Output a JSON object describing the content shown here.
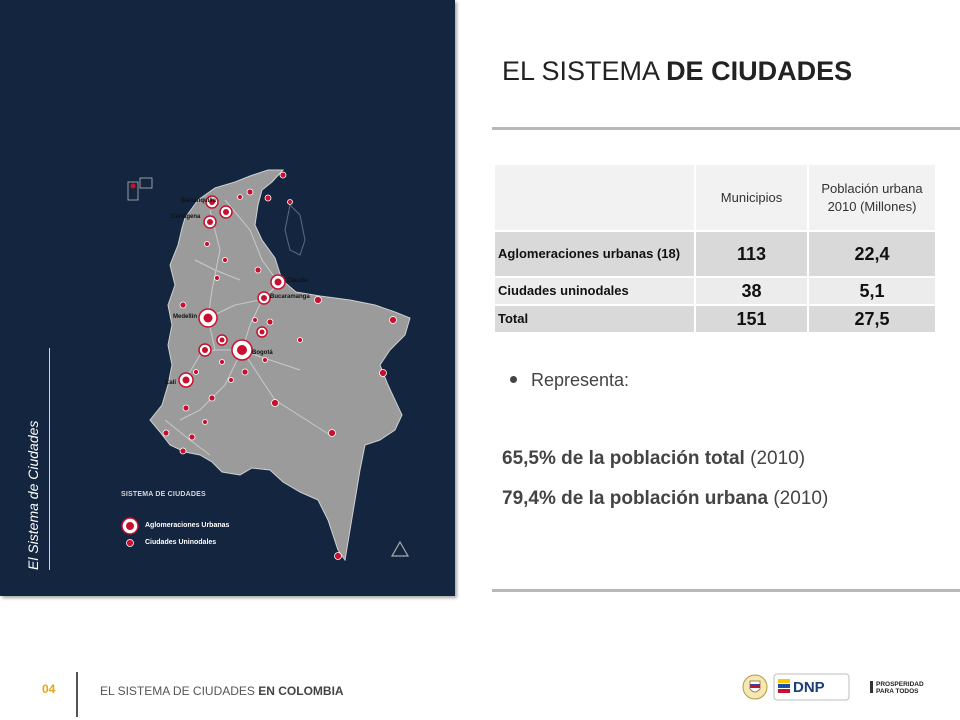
{
  "header": {
    "title_regular": "EL SISTEMA ",
    "title_bold": "DE CIUDADES"
  },
  "side_label": "El Sistema de Ciudades",
  "map": {
    "city_labels": [
      "Barranquilla",
      "Cartagena",
      "Cúcuta",
      "Bucaramanga",
      "Medellín",
      "Bogotá",
      "Cali"
    ],
    "legend": {
      "title": "SISTEMA DE CIUDADES",
      "item_1": "Aglomeraciones Urbanas",
      "item_2": "Ciudades Uninodales"
    },
    "colors": {
      "panel": "#13253f",
      "land": "#9b9b9b",
      "marker": "#c8102e"
    }
  },
  "table": {
    "headers": [
      "",
      "Municipios",
      "Población urbana 2010 (Millones)"
    ],
    "rows": [
      {
        "label": "Aglomeraciones urbanas (18)",
        "municipios": "113",
        "poblacion": "22,4"
      },
      {
        "label": "Ciudades uninodales",
        "municipios": "38",
        "poblacion": "5,1"
      },
      {
        "label": "Total",
        "municipios": "151",
        "poblacion": "27,5"
      }
    ]
  },
  "bullet": "Representa:",
  "stats": [
    {
      "bold": "65,5% de la población total",
      "rest": " (2010)"
    },
    {
      "bold": "79,4% de la población urbana",
      "rest": " (2010)"
    }
  ],
  "footer": {
    "page_number": "04",
    "text_regular": "EL SISTEMA DE CIUDADES ",
    "text_bold": "EN COLOMBIA",
    "dnp_logo_text": "DNP",
    "prosperidad_text_1": "PROSPERIDAD",
    "prosperidad_text_2": "PARA TODOS"
  }
}
